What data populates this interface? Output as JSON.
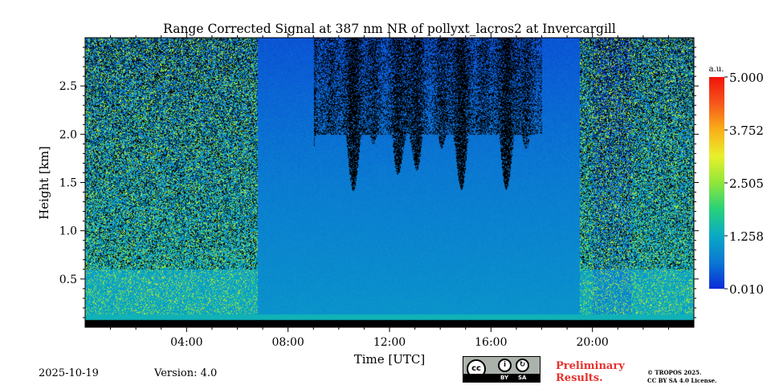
{
  "chart_data": {
    "type": "heatmap",
    "title": "Range Corrected Signal at 387 nm NR of pollyxt_lacros2 at Invercargill",
    "xlabel": "Time [UTC]",
    "ylabel": "Height [km]",
    "xlim_hours": [
      0,
      24
    ],
    "ylim_km": [
      0,
      3.0
    ],
    "xticks": [
      {
        "hour": 4,
        "label": "04:00"
      },
      {
        "hour": 8,
        "label": "08:00"
      },
      {
        "hour": 12,
        "label": "12:00"
      },
      {
        "hour": 16,
        "label": "16:00"
      },
      {
        "hour": 20,
        "label": "20:00"
      }
    ],
    "yticks": [
      {
        "km": 0.5,
        "label": "0.5"
      },
      {
        "km": 1.0,
        "label": "1.0"
      },
      {
        "km": 1.5,
        "label": "1.5"
      },
      {
        "km": 2.0,
        "label": "2.0"
      },
      {
        "km": 2.5,
        "label": "2.5"
      }
    ],
    "colorbar": {
      "unit": "a.u.",
      "range": [
        0.01,
        5.0
      ],
      "ticks": [
        {
          "value": 5.0,
          "label": "5.000"
        },
        {
          "value": 3.752,
          "label": "3.752"
        },
        {
          "value": 2.505,
          "label": "2.505"
        },
        {
          "value": 1.258,
          "label": "1.258"
        },
        {
          "value": 0.01,
          "label": "0.010"
        }
      ],
      "colors": [
        "#0b2bd8",
        "#0a78d2",
        "#0aa9c6",
        "#27d17a",
        "#8fe63b",
        "#e8f02c",
        "#f9b019",
        "#f5571b",
        "#f0140c"
      ]
    },
    "colormap": "jet-like (blue to red)",
    "no_signal_color": "#000000"
  },
  "footer": {
    "date": "2025-10-19",
    "version": "Version: 4.0",
    "license_badge": {
      "cc": "cc",
      "by": "BY",
      "sa": "SA"
    },
    "preliminary": "Preliminary Results.",
    "copyright_line1": "© TROPOS 2025.",
    "copyright_line2": "CC BY SA 4.0 License."
  }
}
